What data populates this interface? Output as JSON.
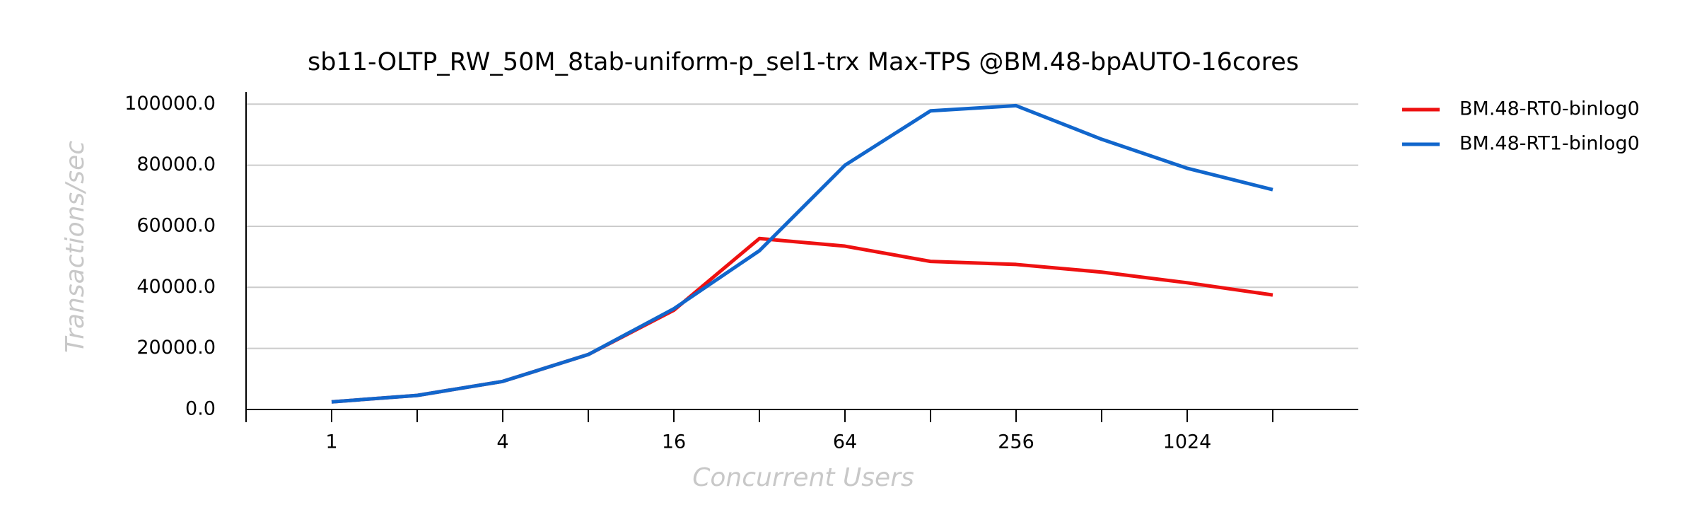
{
  "chart_data": {
    "type": "line",
    "title": "sb11-OLTP_RW_50M_8tab-uniform-p_sel1-trx Max-TPS @BM.48-bpAUTO-16cores",
    "x_label": "Concurrent Users",
    "y_label": "Transactions/sec",
    "categories": [
      "1",
      null,
      "4",
      null,
      "16",
      null,
      "64",
      null,
      "256",
      null,
      "1024",
      null
    ],
    "series": [
      {
        "name": "BM.48-RT0-binlog0",
        "color": "#ee1111",
        "values": [
          2500,
          4600,
          9200,
          18000,
          32500,
          56000,
          53500,
          48500,
          47500,
          45000,
          41500,
          37500
        ]
      },
      {
        "name": "BM.48-RT1-binlog0",
        "color": "#1166cc",
        "values": [
          2500,
          4600,
          9200,
          18000,
          33000,
          52000,
          80000,
          97800,
          99500,
          88500,
          79000,
          72000
        ]
      }
    ],
    "ylim": [
      0,
      104000
    ],
    "yticks": [
      {
        "value": 0,
        "label": "0.0"
      },
      {
        "value": 20000,
        "label": "20000.0"
      },
      {
        "value": 40000,
        "label": "40000.0"
      },
      {
        "value": 60000,
        "label": "60000.0"
      },
      {
        "value": 80000,
        "label": "80000.0"
      },
      {
        "value": 100000,
        "label": "100000.0"
      }
    ],
    "grid": true,
    "legend": "right"
  }
}
